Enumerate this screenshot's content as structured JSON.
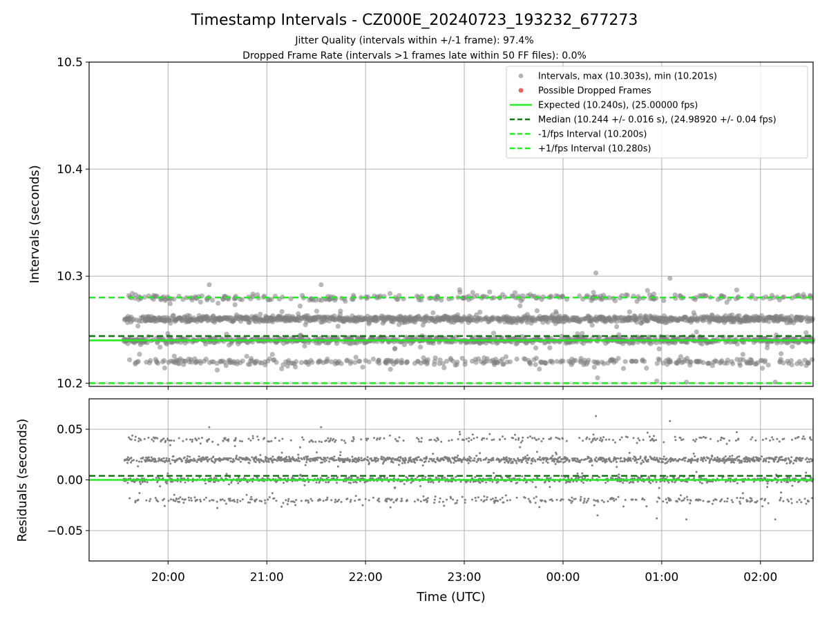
{
  "title": "Timestamp Intervals - CZ000E_20240723_193232_677273",
  "subtitle_1": "Jitter Quality (intervals within +/-1 frame): 97.4%",
  "subtitle_2": "Dropped Frame Rate (intervals >1 frames late within 50 FF files): 0.0%",
  "colors": {
    "points": "#808080",
    "dropped": "#f05050",
    "expected": "#22ee22",
    "median": "#117711",
    "bounds": "#22ee22",
    "grid": "#b0b0b0"
  },
  "chart_data": [
    {
      "type": "scatter",
      "ylabel": "Intervals (seconds)",
      "ylim": [
        10.197,
        10.5
      ],
      "yticks": [
        "10.2",
        "10.3",
        "10.4",
        "10.5"
      ],
      "xlim": [
        "2024-07-23 19:12",
        "2024-07-24 02:32"
      ],
      "grid": true,
      "legend_position": "top-right",
      "legend": [
        "Intervals, max (10.303s), min (10.201s)",
        "Possible Dropped Frames",
        "Expected (10.240s), (25.00000 fps)",
        "Median (10.244 +/- 0.016 s), (24.98920 +/- 0.04 fps)",
        "-1/fps Interval (10.200s)",
        "+1/fps Interval (10.280s)"
      ],
      "reference_lines": {
        "expected": 10.24,
        "median": 10.244,
        "minus_1fps": 10.2,
        "plus_1fps": 10.28
      },
      "intervals": {
        "max": 10.303,
        "min": 10.201,
        "levels": [
          10.22,
          10.24,
          10.26,
          10.28
        ],
        "count": 2580,
        "time_range": [
          "2024-07-23 19:33",
          "2024-07-24 02:32"
        ],
        "outliers": [
          {
            "t": "2024-07-24 00:20",
            "y": 10.303
          },
          {
            "t": "2024-07-24 01:05",
            "y": 10.298
          },
          {
            "t": "2024-07-24 00:21",
            "y": 10.205
          },
          {
            "t": "2024-07-24 01:15",
            "y": 10.201
          },
          {
            "t": "2024-07-24 00:57",
            "y": 10.202
          },
          {
            "t": "2024-07-24 02:09",
            "y": 10.201
          },
          {
            "t": "2024-07-23 20:25",
            "y": 10.292
          },
          {
            "t": "2024-07-23 21:33",
            "y": 10.292
          }
        ]
      },
      "possible_dropped_frames": []
    },
    {
      "type": "scatter",
      "xlabel": "Time (UTC)",
      "ylabel": "Residuals (seconds)",
      "ylim": [
        -0.08,
        0.08
      ],
      "yticks": [
        "−0.05",
        "0.00",
        "0.05"
      ],
      "xticks": [
        "20:00",
        "21:00",
        "22:00",
        "23:00",
        "00:00",
        "01:00",
        "02:00"
      ],
      "grid": true,
      "reference_lines": {
        "zero": 0.0,
        "median_offset": 0.004
      },
      "residuals": {
        "max": 0.063,
        "min": -0.039,
        "levels": [
          -0.02,
          0.0,
          0.02,
          0.04
        ]
      }
    }
  ]
}
